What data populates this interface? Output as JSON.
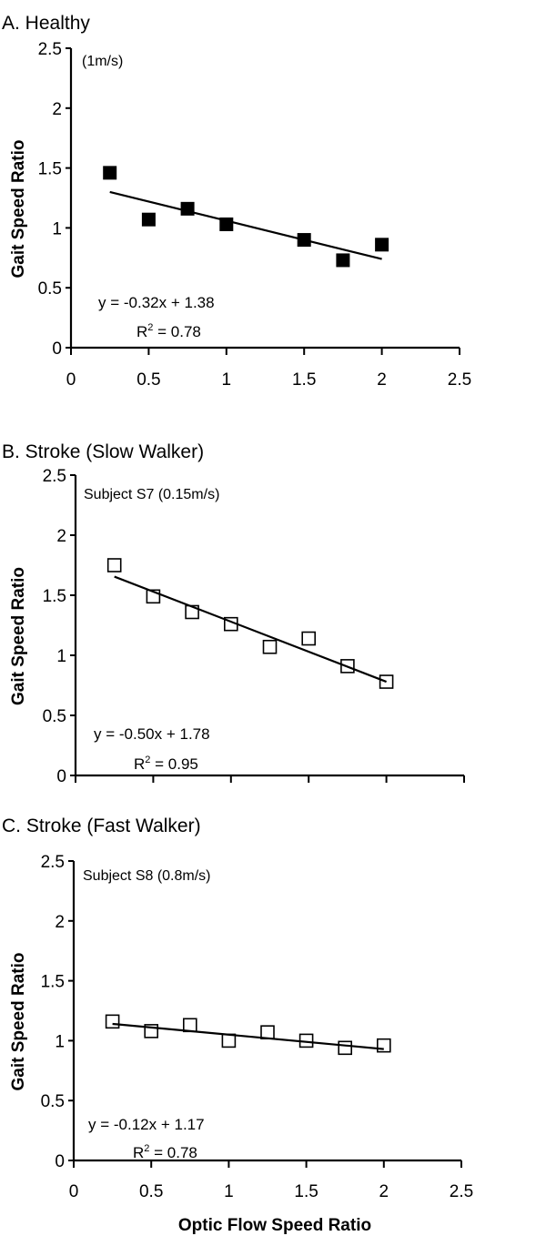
{
  "chart_data": [
    {
      "type": "scatter",
      "title": "A. Healthy",
      "annotation": "(1m/s)",
      "xlabel": "",
      "ylabel": "Gait Speed Ratio",
      "xlim": [
        0,
        2.5
      ],
      "ylim": [
        0,
        2.5
      ],
      "xticks": [
        "0",
        "0.5",
        "1",
        "1.5",
        "2",
        "2.5"
      ],
      "yticks": [
        "0",
        "0.5",
        "1",
        "1.5",
        "2",
        "2.5"
      ],
      "show_xtick_labels": true,
      "marker": "filled-square",
      "x": [
        0.25,
        0.5,
        0.75,
        1.0,
        1.5,
        1.75,
        2.0
      ],
      "y": [
        1.46,
        1.07,
        1.16,
        1.03,
        0.9,
        0.73,
        0.86
      ],
      "trendline": {
        "slope": -0.32,
        "intercept": 1.38,
        "equation": "y = -0.32x + 1.38",
        "r2_label": "R",
        "r2_sup": "2",
        "r2_value": " = 0.78"
      },
      "grid": false
    },
    {
      "type": "scatter",
      "title": "B. Stroke (Slow Walker)",
      "annotation": "Subject S7 (0.15m/s)",
      "xlabel": "",
      "ylabel": "Gait Speed Ratio",
      "xlim": [
        0,
        2.5
      ],
      "ylim": [
        0,
        2.5
      ],
      "xticks": [
        "0",
        "0.5",
        "1",
        "1.5",
        "2",
        "2.5"
      ],
      "yticks": [
        "0",
        "0.5",
        "1",
        "1.5",
        "2",
        "2.5"
      ],
      "show_xtick_labels": false,
      "marker": "open-square",
      "x": [
        0.25,
        0.5,
        0.75,
        1.0,
        1.25,
        1.5,
        1.75,
        2.0
      ],
      "y": [
        1.75,
        1.49,
        1.36,
        1.26,
        1.07,
        1.14,
        0.91,
        0.78
      ],
      "trendline": {
        "slope": -0.5,
        "intercept": 1.78,
        "equation": "y = -0.50x + 1.78",
        "r2_label": "R",
        "r2_sup": "2",
        "r2_value": " = 0.95"
      },
      "grid": false
    },
    {
      "type": "scatter",
      "title": "C. Stroke (Fast Walker)",
      "annotation": "Subject S8 (0.8m/s)",
      "xlabel": "Optic Flow Speed Ratio",
      "ylabel": "Gait Speed Ratio",
      "xlim": [
        0,
        2.5
      ],
      "ylim": [
        0,
        2.5
      ],
      "xticks": [
        "0",
        "0.5",
        "1",
        "1.5",
        "2",
        "2.5"
      ],
      "yticks": [
        "0",
        "0.5",
        "1",
        "1.5",
        "2",
        "2.5"
      ],
      "show_xtick_labels": true,
      "marker": "open-square",
      "x": [
        0.25,
        0.5,
        0.75,
        1.0,
        1.25,
        1.5,
        1.75,
        2.0
      ],
      "y": [
        1.16,
        1.08,
        1.13,
        1.0,
        1.07,
        1.0,
        0.94,
        0.96
      ],
      "trendline": {
        "slope": -0.12,
        "intercept": 1.17,
        "equation": "y = -0.12x + 1.17",
        "r2_label": "R",
        "r2_sup": "2",
        "r2_value": " = 0.78"
      },
      "grid": false
    }
  ]
}
